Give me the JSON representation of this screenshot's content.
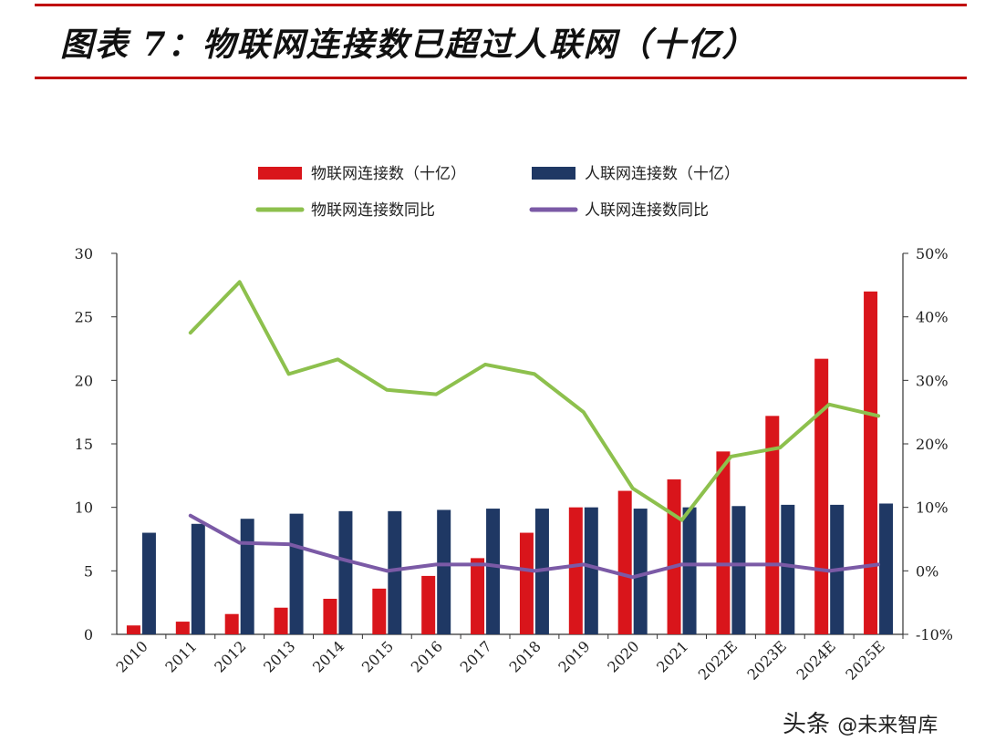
{
  "header": {
    "title": "图表 7：物联网连接数已超过人联网（十亿）"
  },
  "watermark": {
    "source": "头条",
    "handle": "@未来智库"
  },
  "colors": {
    "iot_bar": "#d9151b",
    "human_bar": "#1f3864",
    "iot_line": "#8dc04d",
    "human_line": "#7b5aa6",
    "accent": "#c00000"
  },
  "chart_data": {
    "type": "bar",
    "title": "物联网连接数已超过人联网（十亿）",
    "categories": [
      "2010",
      "2011",
      "2012",
      "2013",
      "2014",
      "2015",
      "2016",
      "2017",
      "2018",
      "2019",
      "2020",
      "2021",
      "2022E",
      "2023E",
      "2024E",
      "2025E"
    ],
    "left_axis": {
      "min": 0,
      "max": 30,
      "ticks": [
        0,
        5,
        10,
        15,
        20,
        25,
        30
      ]
    },
    "right_axis": {
      "min": -10,
      "max": 50,
      "ticks": [
        "-10%",
        "0%",
        "10%",
        "20%",
        "30%",
        "40%",
        "50%"
      ]
    },
    "series": [
      {
        "name": "物联网连接数（十亿）",
        "kind": "bar",
        "axis": "left",
        "color_key": "iot_bar",
        "values": [
          0.7,
          1.0,
          1.6,
          2.1,
          2.8,
          3.6,
          4.6,
          6.0,
          8.0,
          10.0,
          11.3,
          12.2,
          14.4,
          17.2,
          21.7,
          27.0
        ]
      },
      {
        "name": "人联网连接数（十亿）",
        "kind": "bar",
        "axis": "left",
        "color_key": "human_bar",
        "values": [
          8.0,
          8.7,
          9.1,
          9.5,
          9.7,
          9.7,
          9.8,
          9.9,
          9.9,
          10.0,
          9.9,
          10.0,
          10.1,
          10.2,
          10.2,
          10.3
        ]
      },
      {
        "name": "物联网连接数同比",
        "kind": "line",
        "axis": "right",
        "color_key": "iot_line",
        "values": [
          null,
          37.5,
          45.5,
          31.0,
          33.3,
          28.5,
          27.8,
          32.5,
          31.0,
          25.0,
          13.0,
          8.0,
          18.0,
          19.4,
          26.2,
          24.4
        ]
      },
      {
        "name": "人联网连接数同比",
        "kind": "line",
        "axis": "right",
        "color_key": "human_line",
        "values": [
          null,
          8.7,
          4.4,
          4.2,
          2.0,
          0.0,
          1.0,
          1.0,
          0.0,
          1.0,
          -1.0,
          1.0,
          1.0,
          1.0,
          0.0,
          1.0
        ]
      }
    ]
  }
}
